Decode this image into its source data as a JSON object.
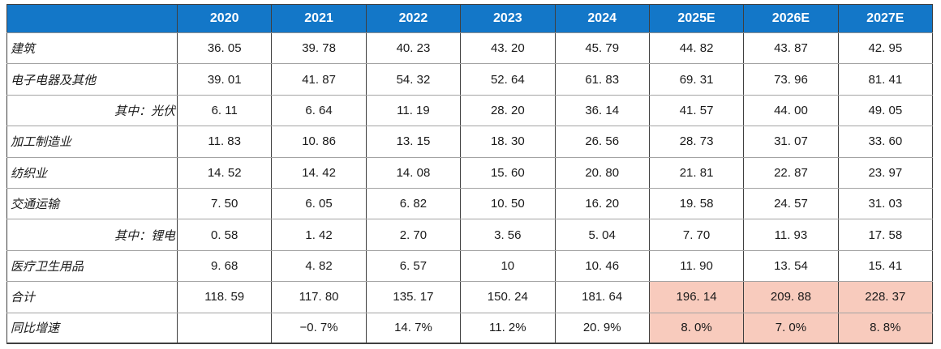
{
  "table": {
    "corner_label": "",
    "columns": [
      "2020",
      "2021",
      "2022",
      "2023",
      "2024",
      "2025E",
      "2026E",
      "2027E"
    ],
    "rows": [
      {
        "label": "建筑",
        "align": "left",
        "highlight_from": null,
        "values": [
          "36. 05",
          "39. 78",
          "40. 23",
          "43. 20",
          "45. 79",
          "44. 82",
          "43. 87",
          "42. 95"
        ]
      },
      {
        "label": "电子电器及其他",
        "align": "left",
        "highlight_from": null,
        "values": [
          "39. 01",
          "41. 87",
          "54. 32",
          "52. 64",
          "61. 83",
          "69. 31",
          "73. 96",
          "81. 41"
        ]
      },
      {
        "label": "其中：光伏",
        "align": "right",
        "highlight_from": null,
        "values": [
          "6. 11",
          "6. 64",
          "11. 19",
          "28. 20",
          "36. 14",
          "41. 57",
          "44. 00",
          "49. 05"
        ]
      },
      {
        "label": "加工制造业",
        "align": "left",
        "highlight_from": null,
        "values": [
          "11. 83",
          "10. 86",
          "13. 15",
          "18. 30",
          "26. 56",
          "28. 73",
          "31. 07",
          "33. 60"
        ]
      },
      {
        "label": "纺织业",
        "align": "left",
        "highlight_from": null,
        "values": [
          "14. 52",
          "14. 42",
          "14. 08",
          "15. 60",
          "20. 80",
          "21. 81",
          "22. 87",
          "23. 97"
        ]
      },
      {
        "label": "交通运输",
        "align": "left",
        "highlight_from": null,
        "values": [
          "7. 50",
          "6. 05",
          "6. 82",
          "10. 50",
          "16. 20",
          "19. 58",
          "24. 57",
          "31. 03"
        ]
      },
      {
        "label": "其中：锂电",
        "align": "right",
        "highlight_from": null,
        "values": [
          "0. 58",
          "1. 42",
          "2. 70",
          "3. 56",
          "5. 04",
          "7. 70",
          "11. 93",
          "17. 58"
        ]
      },
      {
        "label": "医疗卫生用品",
        "align": "left",
        "highlight_from": null,
        "values": [
          "9. 68",
          "4. 82",
          "6. 57",
          "10",
          "10. 46",
          "11. 90",
          "13. 54",
          "15. 41"
        ]
      },
      {
        "label": "合计",
        "align": "left",
        "highlight_from": 5,
        "values": [
          "118. 59",
          "117. 80",
          "135. 17",
          "150. 24",
          "181. 64",
          "196. 14",
          "209. 88",
          "228. 37"
        ]
      },
      {
        "label": "同比增速",
        "align": "left",
        "highlight_from": 5,
        "values": [
          "",
          "−0. 7%",
          "14. 7%",
          "11. 2%",
          "20. 9%",
          "8. 0%",
          "7. 0%",
          "8. 8%"
        ]
      }
    ],
    "style": {
      "header_bg": "#1377C8",
      "header_text": "#FFFFFF",
      "highlight_bg": "#F8CBBD",
      "grid_vertical": "#3F3F3F",
      "grid_horizontal": "#A3A3A3"
    }
  },
  "chart_data": {
    "type": "table",
    "title": "",
    "categories": [
      "2020",
      "2021",
      "2022",
      "2023",
      "2024",
      "2025E",
      "2026E",
      "2027E"
    ],
    "series": [
      {
        "name": "建筑",
        "values": [
          36.05,
          39.78,
          40.23,
          43.2,
          45.79,
          44.82,
          43.87,
          42.95
        ]
      },
      {
        "name": "电子电器及其他",
        "values": [
          39.01,
          41.87,
          54.32,
          52.64,
          61.83,
          69.31,
          73.96,
          81.41
        ]
      },
      {
        "name": "其中：光伏",
        "values": [
          6.11,
          6.64,
          11.19,
          28.2,
          36.14,
          41.57,
          44.0,
          49.05
        ]
      },
      {
        "name": "加工制造业",
        "values": [
          11.83,
          10.86,
          13.15,
          18.3,
          26.56,
          28.73,
          31.07,
          33.6
        ]
      },
      {
        "name": "纺织业",
        "values": [
          14.52,
          14.42,
          14.08,
          15.6,
          20.8,
          21.81,
          22.87,
          23.97
        ]
      },
      {
        "name": "交通运输",
        "values": [
          7.5,
          6.05,
          6.82,
          10.5,
          16.2,
          19.58,
          24.57,
          31.03
        ]
      },
      {
        "name": "其中：锂电",
        "values": [
          0.58,
          1.42,
          2.7,
          3.56,
          5.04,
          7.7,
          11.93,
          17.58
        ]
      },
      {
        "name": "医疗卫生用品",
        "values": [
          9.68,
          4.82,
          6.57,
          10,
          10.46,
          11.9,
          13.54,
          15.41
        ]
      },
      {
        "name": "合计",
        "values": [
          118.59,
          117.8,
          135.17,
          150.24,
          181.64,
          196.14,
          209.88,
          228.37
        ]
      },
      {
        "name": "同比增速(%)",
        "values": [
          null,
          -0.7,
          14.7,
          11.2,
          20.9,
          8.0,
          7.0,
          8.8
        ]
      }
    ],
    "layout_hints": {
      "highlighted_columns": [
        "2025E",
        "2026E",
        "2027E"
      ],
      "highlighted_rows": [
        "合计",
        "同比增速"
      ],
      "header_style": "blue band, white bold text"
    }
  }
}
